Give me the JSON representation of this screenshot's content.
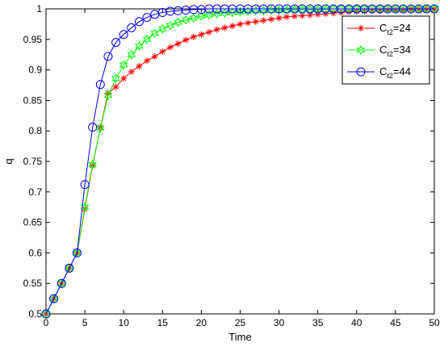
{
  "chart_data": {
    "type": "line",
    "title": "",
    "xlabel": "Time",
    "ylabel": "q",
    "xlim": [
      0,
      50
    ],
    "ylim": [
      0.5,
      1
    ],
    "xticks": [
      0,
      5,
      10,
      15,
      20,
      25,
      30,
      35,
      40,
      45,
      50
    ],
    "yticks": [
      0.5,
      0.55,
      0.6,
      0.65,
      0.7,
      0.75,
      0.8,
      0.85,
      0.9,
      0.95,
      1
    ],
    "xtick_labels": [
      "0",
      "5",
      "10",
      "15",
      "20",
      "25",
      "30",
      "35",
      "40",
      "45",
      "50"
    ],
    "ytick_labels": [
      "0.5",
      "0.55",
      "0.6",
      "0.65",
      "0.7",
      "0.75",
      "0.8",
      "0.85",
      "0.9",
      "0.95",
      "1"
    ],
    "grid": false,
    "legend_position": "top-right",
    "x": [
      0,
      1,
      2,
      3,
      4,
      5,
      6,
      7,
      8,
      9,
      10,
      11,
      12,
      13,
      14,
      15,
      16,
      17,
      18,
      19,
      20,
      21,
      22,
      23,
      24,
      25,
      26,
      27,
      28,
      29,
      30,
      31,
      32,
      33,
      34,
      35,
      36,
      37,
      38,
      39,
      40,
      41,
      42,
      43,
      44,
      45,
      46,
      47,
      48,
      49,
      50
    ],
    "series": [
      {
        "name": "C",
        "name_sub": "t2",
        "name_suffix": "=24",
        "color": "#ff0000",
        "marker": "asterisk",
        "values": [
          0.5,
          0.525,
          0.55,
          0.575,
          0.6,
          0.672,
          0.743,
          0.806,
          0.862,
          0.872,
          0.886,
          0.897,
          0.906,
          0.915,
          0.922,
          0.93,
          0.937,
          0.943,
          0.949,
          0.954,
          0.958,
          0.962,
          0.966,
          0.969,
          0.972,
          0.975,
          0.977,
          0.979,
          0.981,
          0.983,
          0.985,
          0.987,
          0.988,
          0.989,
          0.99,
          0.991,
          0.992,
          0.993,
          0.994,
          0.995,
          0.996,
          0.996,
          0.997,
          0.997,
          0.998,
          0.998,
          0.998,
          0.999,
          0.999,
          0.999,
          0.999
        ]
      },
      {
        "name": "C",
        "name_sub": "t2",
        "name_suffix": "=34",
        "color": "#00ff00",
        "marker": "hexagram",
        "values": [
          0.5,
          0.525,
          0.55,
          0.575,
          0.6,
          0.675,
          0.745,
          0.805,
          0.858,
          0.886,
          0.908,
          0.925,
          0.939,
          0.95,
          0.96,
          0.967,
          0.973,
          0.978,
          0.982,
          0.985,
          0.988,
          0.99,
          0.992,
          0.993,
          0.994,
          0.995,
          0.996,
          0.997,
          0.997,
          0.998,
          0.998,
          0.998,
          0.999,
          0.999,
          0.999,
          0.999,
          0.999,
          1.0,
          1.0,
          1.0,
          1.0,
          1.0,
          1.0,
          1.0,
          1.0,
          1.0,
          1.0,
          1.0,
          1.0,
          1.0,
          1.0
        ]
      },
      {
        "name": "C",
        "name_sub": "t2",
        "name_suffix": "=44",
        "color": "#0000ff",
        "marker": "circle",
        "values": [
          0.5,
          0.525,
          0.55,
          0.575,
          0.6,
          0.712,
          0.806,
          0.876,
          0.922,
          0.945,
          0.958,
          0.969,
          0.979,
          0.986,
          0.991,
          0.994,
          0.996,
          0.997,
          0.998,
          0.999,
          0.999,
          1.0,
          1.0,
          1.0,
          1.0,
          1.0,
          1.0,
          1.0,
          1.0,
          1.0,
          1.0,
          1.0,
          1.0,
          1.0,
          1.0,
          1.0,
          1.0,
          1.0,
          1.0,
          1.0,
          1.0,
          1.0,
          1.0,
          1.0,
          1.0,
          1.0,
          1.0,
          1.0,
          1.0,
          1.0,
          1.0
        ]
      }
    ]
  }
}
